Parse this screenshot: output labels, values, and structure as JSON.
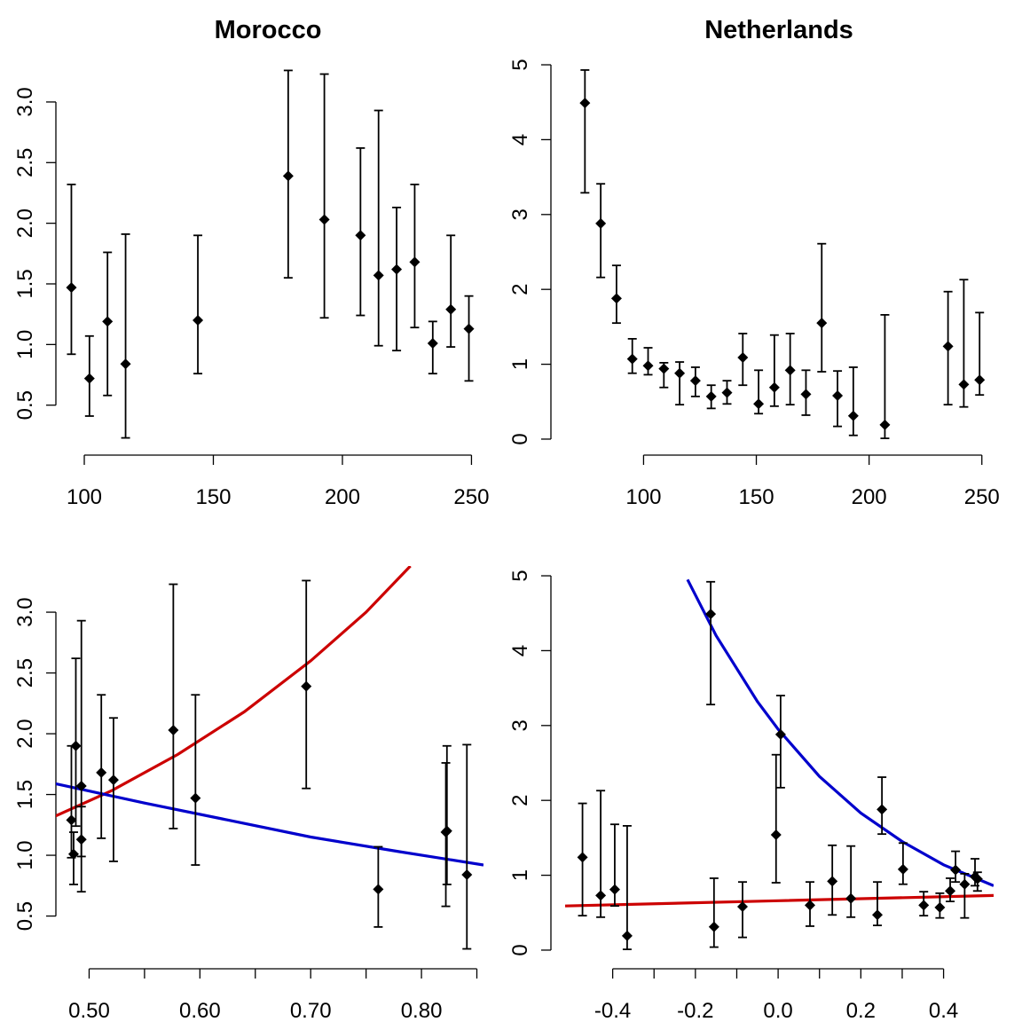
{
  "chart_data": [
    {
      "type": "scatter",
      "title": "Morocco",
      "xlim": [
        89,
        255
      ],
      "ylim": [
        0.11,
        3.38
      ],
      "xticks": [
        100,
        150,
        200,
        250
      ],
      "yticks": [
        0.5,
        {
          "value": 1,
          "label": "1.0"
        },
        1.5,
        {
          "value": 2,
          "label": "2.0"
        },
        2.5,
        {
          "value": 3,
          "label": "3.0"
        }
      ],
      "color": "#000000",
      "x": [
        95,
        102,
        109,
        116,
        144,
        179,
        193,
        207,
        214,
        221,
        228,
        235,
        242,
        249
      ],
      "y": [
        1.47,
        0.72,
        1.19,
        0.84,
        1.2,
        2.39,
        2.03,
        1.9,
        1.57,
        1.62,
        1.68,
        1.01,
        1.29,
        1.13
      ],
      "lower": [
        0.92,
        0.41,
        0.58,
        0.23,
        0.76,
        1.55,
        1.22,
        1.24,
        0.99,
        0.95,
        1.14,
        0.76,
        0.98,
        0.7
      ],
      "upper": [
        2.32,
        1.07,
        1.76,
        1.91,
        1.9,
        3.26,
        3.23,
        2.62,
        2.93,
        2.13,
        2.32,
        1.19,
        1.9,
        1.4
      ]
    },
    {
      "type": "scatter",
      "title": "Netherlands",
      "xlim": [
        66,
        256
      ],
      "ylim": [
        -0.19,
        5.19
      ],
      "xticks": [
        100,
        150,
        200,
        250
      ],
      "yticks": [
        0,
        1,
        2,
        3,
        4,
        5
      ],
      "color": "#000000",
      "x": [
        74,
        81,
        88,
        95,
        102,
        109,
        116,
        123,
        130,
        137,
        144,
        151,
        158,
        165,
        172,
        179,
        186,
        193,
        207,
        235,
        242,
        249
      ],
      "y": [
        4.49,
        2.88,
        1.88,
        1.07,
        0.98,
        0.94,
        0.88,
        0.78,
        0.57,
        0.62,
        1.09,
        0.47,
        0.69,
        0.92,
        0.6,
        1.55,
        0.58,
        0.31,
        0.19,
        1.24,
        0.73,
        0.79
      ],
      "lower": [
        3.29,
        2.16,
        1.55,
        0.88,
        0.86,
        0.69,
        0.46,
        0.57,
        0.41,
        0.47,
        0.72,
        0.34,
        0.44,
        0.46,
        0.32,
        0.9,
        0.17,
        0.05,
        0.01,
        0.46,
        0.43,
        0.59
      ],
      "upper": [
        4.93,
        3.41,
        2.32,
        1.34,
        1.22,
        1.02,
        1.03,
        0.96,
        0.72,
        0.78,
        1.41,
        0.92,
        1.39,
        1.41,
        0.92,
        2.61,
        0.91,
        0.96,
        1.66,
        1.97,
        2.13,
        1.69
      ]
    },
    {
      "type": "scatter",
      "xlim": [
        0.47,
        0.856
      ],
      "ylim": [
        0.11,
        3.38
      ],
      "xticks": [
        {
          "value": 0.5,
          "label": "0.50"
        },
        {
          "value": 0.6,
          "label": "0.60"
        },
        {
          "value": 0.7,
          "label": "0.70"
        },
        {
          "value": 0.8,
          "label": "0.80"
        }
      ],
      "xminor": [
        0.55,
        0.65,
        0.75,
        0.85
      ],
      "yticks": [
        0.5,
        {
          "value": 1,
          "label": "1.0"
        },
        1.5,
        {
          "value": 2,
          "label": "2.0"
        },
        2.5,
        {
          "value": 3,
          "label": "3.0"
        }
      ],
      "color": "#000000",
      "x": [
        0.484,
        0.486,
        0.488,
        0.493,
        0.493,
        0.511,
        0.522,
        0.576,
        0.596,
        0.696,
        0.761,
        0.822,
        0.823,
        0.841
      ],
      "y": [
        1.29,
        1.01,
        1.9,
        1.57,
        1.13,
        1.68,
        1.62,
        2.03,
        1.47,
        2.39,
        0.72,
        1.19,
        1.2,
        0.84
      ],
      "lower": [
        0.98,
        0.76,
        1.24,
        0.99,
        0.7,
        1.14,
        0.95,
        1.22,
        0.92,
        1.55,
        0.41,
        0.58,
        0.76,
        0.23
      ],
      "upper": [
        1.9,
        1.19,
        2.62,
        2.93,
        1.4,
        2.32,
        2.13,
        3.23,
        2.32,
        3.26,
        1.07,
        1.76,
        1.9,
        1.91
      ],
      "lines": [
        {
          "color": "#cc0000",
          "x": [
            0.469,
            0.52,
            0.58,
            0.64,
            0.7,
            0.75,
            0.79
          ],
          "y": [
            1.32,
            1.53,
            1.83,
            2.18,
            2.6,
            3.0,
            3.38
          ]
        },
        {
          "color": "#0000cc",
          "x": [
            0.469,
            0.55,
            0.62,
            0.7,
            0.78,
            0.856
          ],
          "y": [
            1.59,
            1.43,
            1.3,
            1.15,
            1.03,
            0.92
          ]
        }
      ]
    },
    {
      "type": "scatter",
      "xlim": [
        -0.515,
        0.521
      ],
      "ylim": [
        -0.19,
        5.19
      ],
      "xticks": [
        -0.4,
        -0.2,
        {
          "value": 0,
          "label": "0.0"
        },
        0.2,
        0.4
      ],
      "xminor": [
        -0.3,
        -0.1,
        0.1,
        0.3
      ],
      "yticks": [
        0,
        1,
        2,
        3,
        4,
        5
      ],
      "color": "#000000",
      "x": [
        -0.473,
        -0.429,
        -0.395,
        -0.365,
        -0.163,
        -0.155,
        -0.086,
        -0.005,
        0.006,
        0.077,
        0.131,
        0.176,
        0.24,
        0.251,
        0.302,
        0.352,
        0.391,
        0.416,
        0.429,
        0.451,
        0.476,
        0.482
      ],
      "y": [
        1.24,
        0.73,
        0.81,
        0.19,
        4.49,
        0.31,
        0.58,
        1.54,
        2.88,
        0.6,
        0.92,
        0.69,
        0.47,
        1.88,
        1.08,
        0.6,
        0.57,
        0.79,
        1.07,
        0.88,
        0.98,
        0.95
      ],
      "lower": [
        0.46,
        0.44,
        0.59,
        0.01,
        3.28,
        0.04,
        0.17,
        0.9,
        2.17,
        0.32,
        0.47,
        0.44,
        0.33,
        1.55,
        0.88,
        0.46,
        0.43,
        0.65,
        0.91,
        0.43,
        0.86,
        0.79
      ],
      "upper": [
        1.96,
        2.13,
        1.68,
        1.66,
        4.92,
        0.96,
        0.91,
        2.61,
        3.4,
        0.91,
        1.4,
        1.39,
        0.91,
        2.31,
        1.43,
        0.78,
        0.76,
        0.96,
        1.32,
        1.02,
        1.22,
        1.04
      ],
      "lines": [
        {
          "color": "#0000cc",
          "x": [
            -0.219,
            -0.15,
            -0.05,
            0,
            0.1,
            0.2,
            0.3,
            0.4,
            0.521
          ],
          "y": [
            4.95,
            4.2,
            3.32,
            2.95,
            2.32,
            1.83,
            1.45,
            1.14,
            0.86
          ]
        },
        {
          "color": "#cc0000",
          "x": [
            -0.515,
            0,
            0.521
          ],
          "y": [
            0.59,
            0.66,
            0.73
          ]
        }
      ]
    }
  ]
}
